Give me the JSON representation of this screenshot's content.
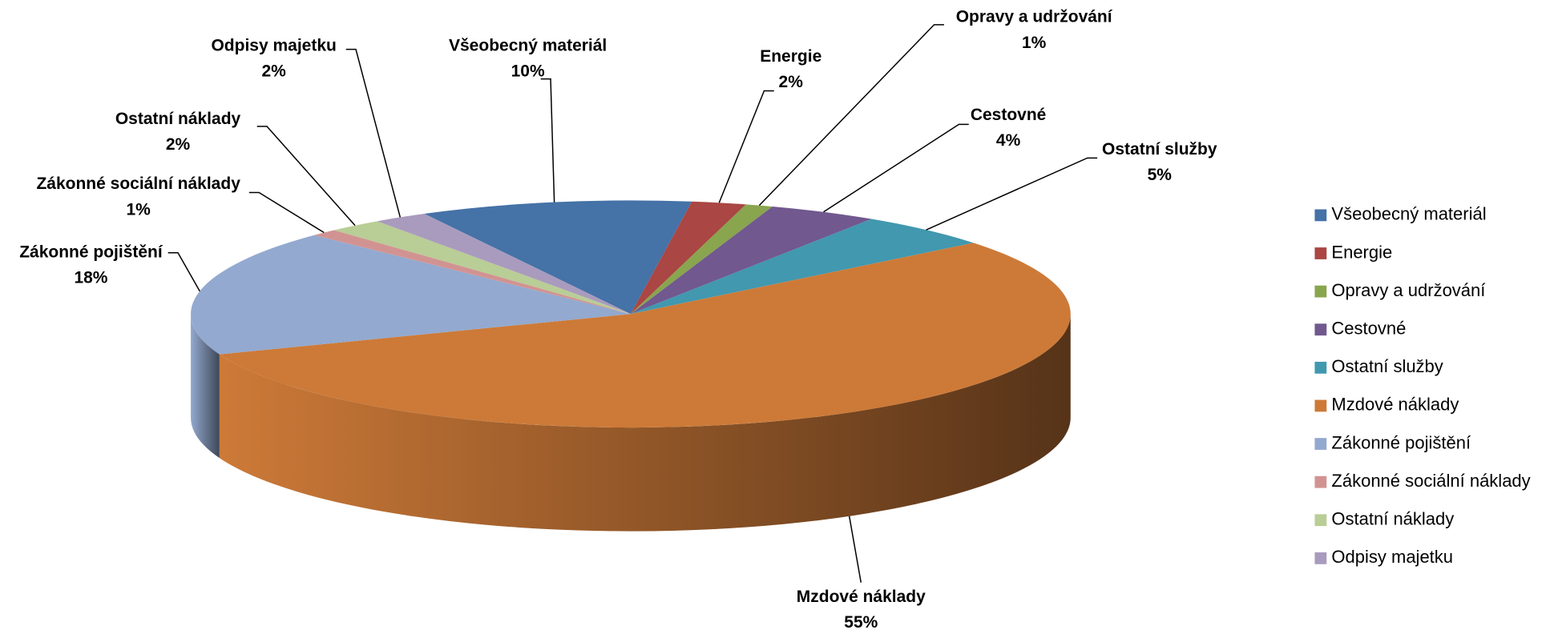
{
  "chart_data": {
    "type": "pie",
    "categories": [
      "Všeobecný materiál",
      "Energie",
      "Opravy a udržování",
      "Cestovné",
      "Ostatní služby",
      "Mzdové náklady",
      "Zákonné pojištění",
      "Zákonné sociální náklady",
      "Ostatní náklady",
      "Odpisy majetku"
    ],
    "values": [
      10,
      2,
      1,
      4,
      5,
      55,
      18,
      1,
      2,
      2
    ],
    "value_labels": [
      "10%",
      "2%",
      "1%",
      "4%",
      "5%",
      "55%",
      "18%",
      "1%",
      "2%",
      "2%"
    ],
    "colors": [
      "#4572a7",
      "#aa4643",
      "#89a54e",
      "#71588f",
      "#4198af",
      "#cd7a38",
      "#93a9cf",
      "#d19392",
      "#b9cd96",
      "#a99bbd"
    ],
    "legend": "right"
  }
}
